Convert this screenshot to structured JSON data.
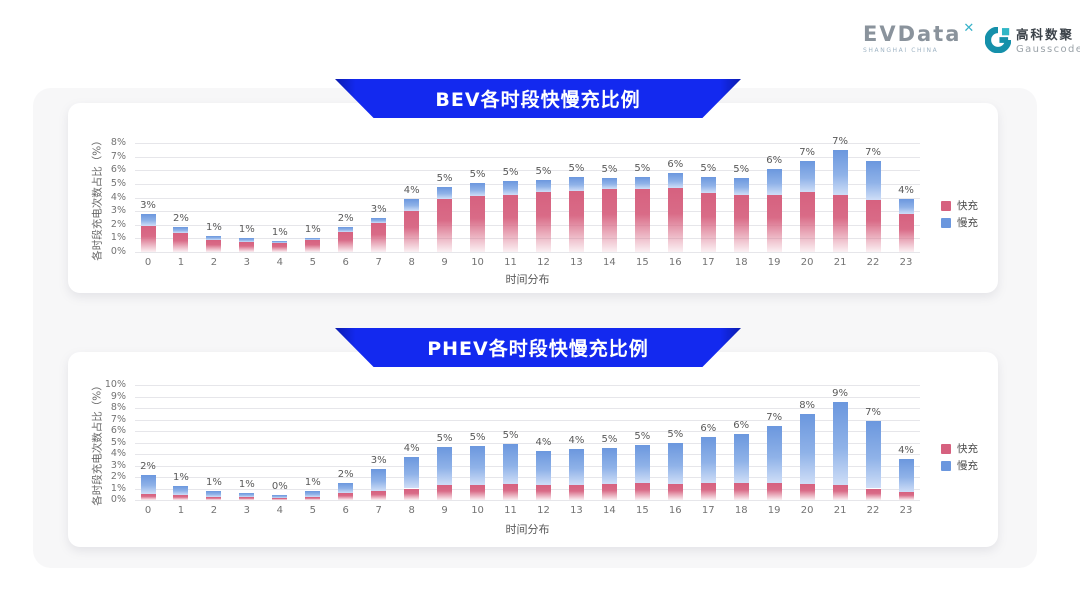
{
  "header": {
    "evdata": {
      "brand": "EVData",
      "superscript": "✕",
      "subtext": "SHANGHAI CHINA"
    },
    "gausscode": {
      "brand_cn": "高科数聚",
      "brand_en": "Gausscode"
    }
  },
  "colors": {
    "banner_blue": "#1329ef",
    "fast_pink": "#d6617f",
    "slow_blue": "#6b97de",
    "panel_bg": "#f7f7f8",
    "grid": "#e6e6ea"
  },
  "chart_data": [
    {
      "type": "bar",
      "stacked": true,
      "title": "BEV各时段快慢充比例",
      "xlabel": "时间分布",
      "ylabel": "各时段充电次数占比（%）",
      "x": [
        0,
        1,
        2,
        3,
        4,
        5,
        6,
        7,
        8,
        9,
        10,
        11,
        12,
        13,
        14,
        15,
        16,
        17,
        18,
        19,
        20,
        21,
        22,
        23
      ],
      "ylim": [
        0,
        8
      ],
      "ytick_labels": [
        "0%",
        "1%",
        "2%",
        "3%",
        "4%",
        "5%",
        "6%",
        "7%",
        "8%"
      ],
      "grid": true,
      "legend_position": "right",
      "series": [
        {
          "name": "快充",
          "color": "#d6617f",
          "values": [
            1.9,
            1.4,
            0.9,
            0.75,
            0.65,
            0.85,
            1.5,
            2.1,
            3.0,
            3.9,
            4.1,
            4.2,
            4.4,
            4.5,
            4.6,
            4.6,
            4.7,
            4.3,
            4.2,
            4.2,
            4.4,
            4.2,
            3.8,
            2.8
          ]
        },
        {
          "name": "慢充",
          "color": "#6b97de",
          "values": [
            0.9,
            0.4,
            0.3,
            0.25,
            0.15,
            0.2,
            0.3,
            0.4,
            0.9,
            0.9,
            1.0,
            1.0,
            0.9,
            1.0,
            0.8,
            0.9,
            1.1,
            1.2,
            1.2,
            1.9,
            2.3,
            3.3,
            2.9,
            1.1
          ]
        }
      ],
      "bar_labels": [
        "3%",
        "2%",
        "1%",
        "1%",
        "1%",
        "1%",
        "2%",
        "3%",
        "4%",
        "5%",
        "5%",
        "5%",
        "5%",
        "5%",
        "5%",
        "5%",
        "6%",
        "5%",
        "5%",
        "6%",
        "7%",
        "7%",
        "7%",
        "4%"
      ]
    },
    {
      "type": "bar",
      "stacked": true,
      "title": "PHEV各时段快慢充比例",
      "xlabel": "时间分布",
      "ylabel": "各时段充电次数占比（%）",
      "x": [
        0,
        1,
        2,
        3,
        4,
        5,
        6,
        7,
        8,
        9,
        10,
        11,
        12,
        13,
        14,
        15,
        16,
        17,
        18,
        19,
        20,
        21,
        22,
        23
      ],
      "ylim": [
        0,
        10
      ],
      "ytick_labels": [
        "0%",
        "1%",
        "2%",
        "3%",
        "4%",
        "5%",
        "6%",
        "7%",
        "8%",
        "9%",
        "10%"
      ],
      "grid": true,
      "legend_position": "right",
      "series": [
        {
          "name": "快充",
          "color": "#d6617f",
          "values": [
            0.5,
            0.4,
            0.3,
            0.25,
            0.2,
            0.3,
            0.6,
            0.8,
            1.0,
            1.3,
            1.3,
            1.4,
            1.3,
            1.3,
            1.35,
            1.5,
            1.4,
            1.5,
            1.5,
            1.5,
            1.4,
            1.3,
            1.0,
            0.7
          ]
        },
        {
          "name": "慢充",
          "color": "#6b97de",
          "values": [
            1.7,
            0.8,
            0.5,
            0.35,
            0.25,
            0.5,
            0.9,
            1.9,
            2.7,
            3.3,
            3.4,
            3.5,
            3.0,
            3.1,
            3.15,
            3.3,
            3.6,
            4.0,
            4.2,
            4.9,
            6.1,
            7.2,
            5.9,
            2.9
          ]
        }
      ],
      "bar_labels": [
        "2%",
        "1%",
        "1%",
        "1%",
        "0%",
        "1%",
        "2%",
        "3%",
        "4%",
        "5%",
        "5%",
        "5%",
        "4%",
        "4%",
        "5%",
        "5%",
        "5%",
        "6%",
        "6%",
        "7%",
        "8%",
        "9%",
        "7%",
        "4%"
      ]
    }
  ]
}
